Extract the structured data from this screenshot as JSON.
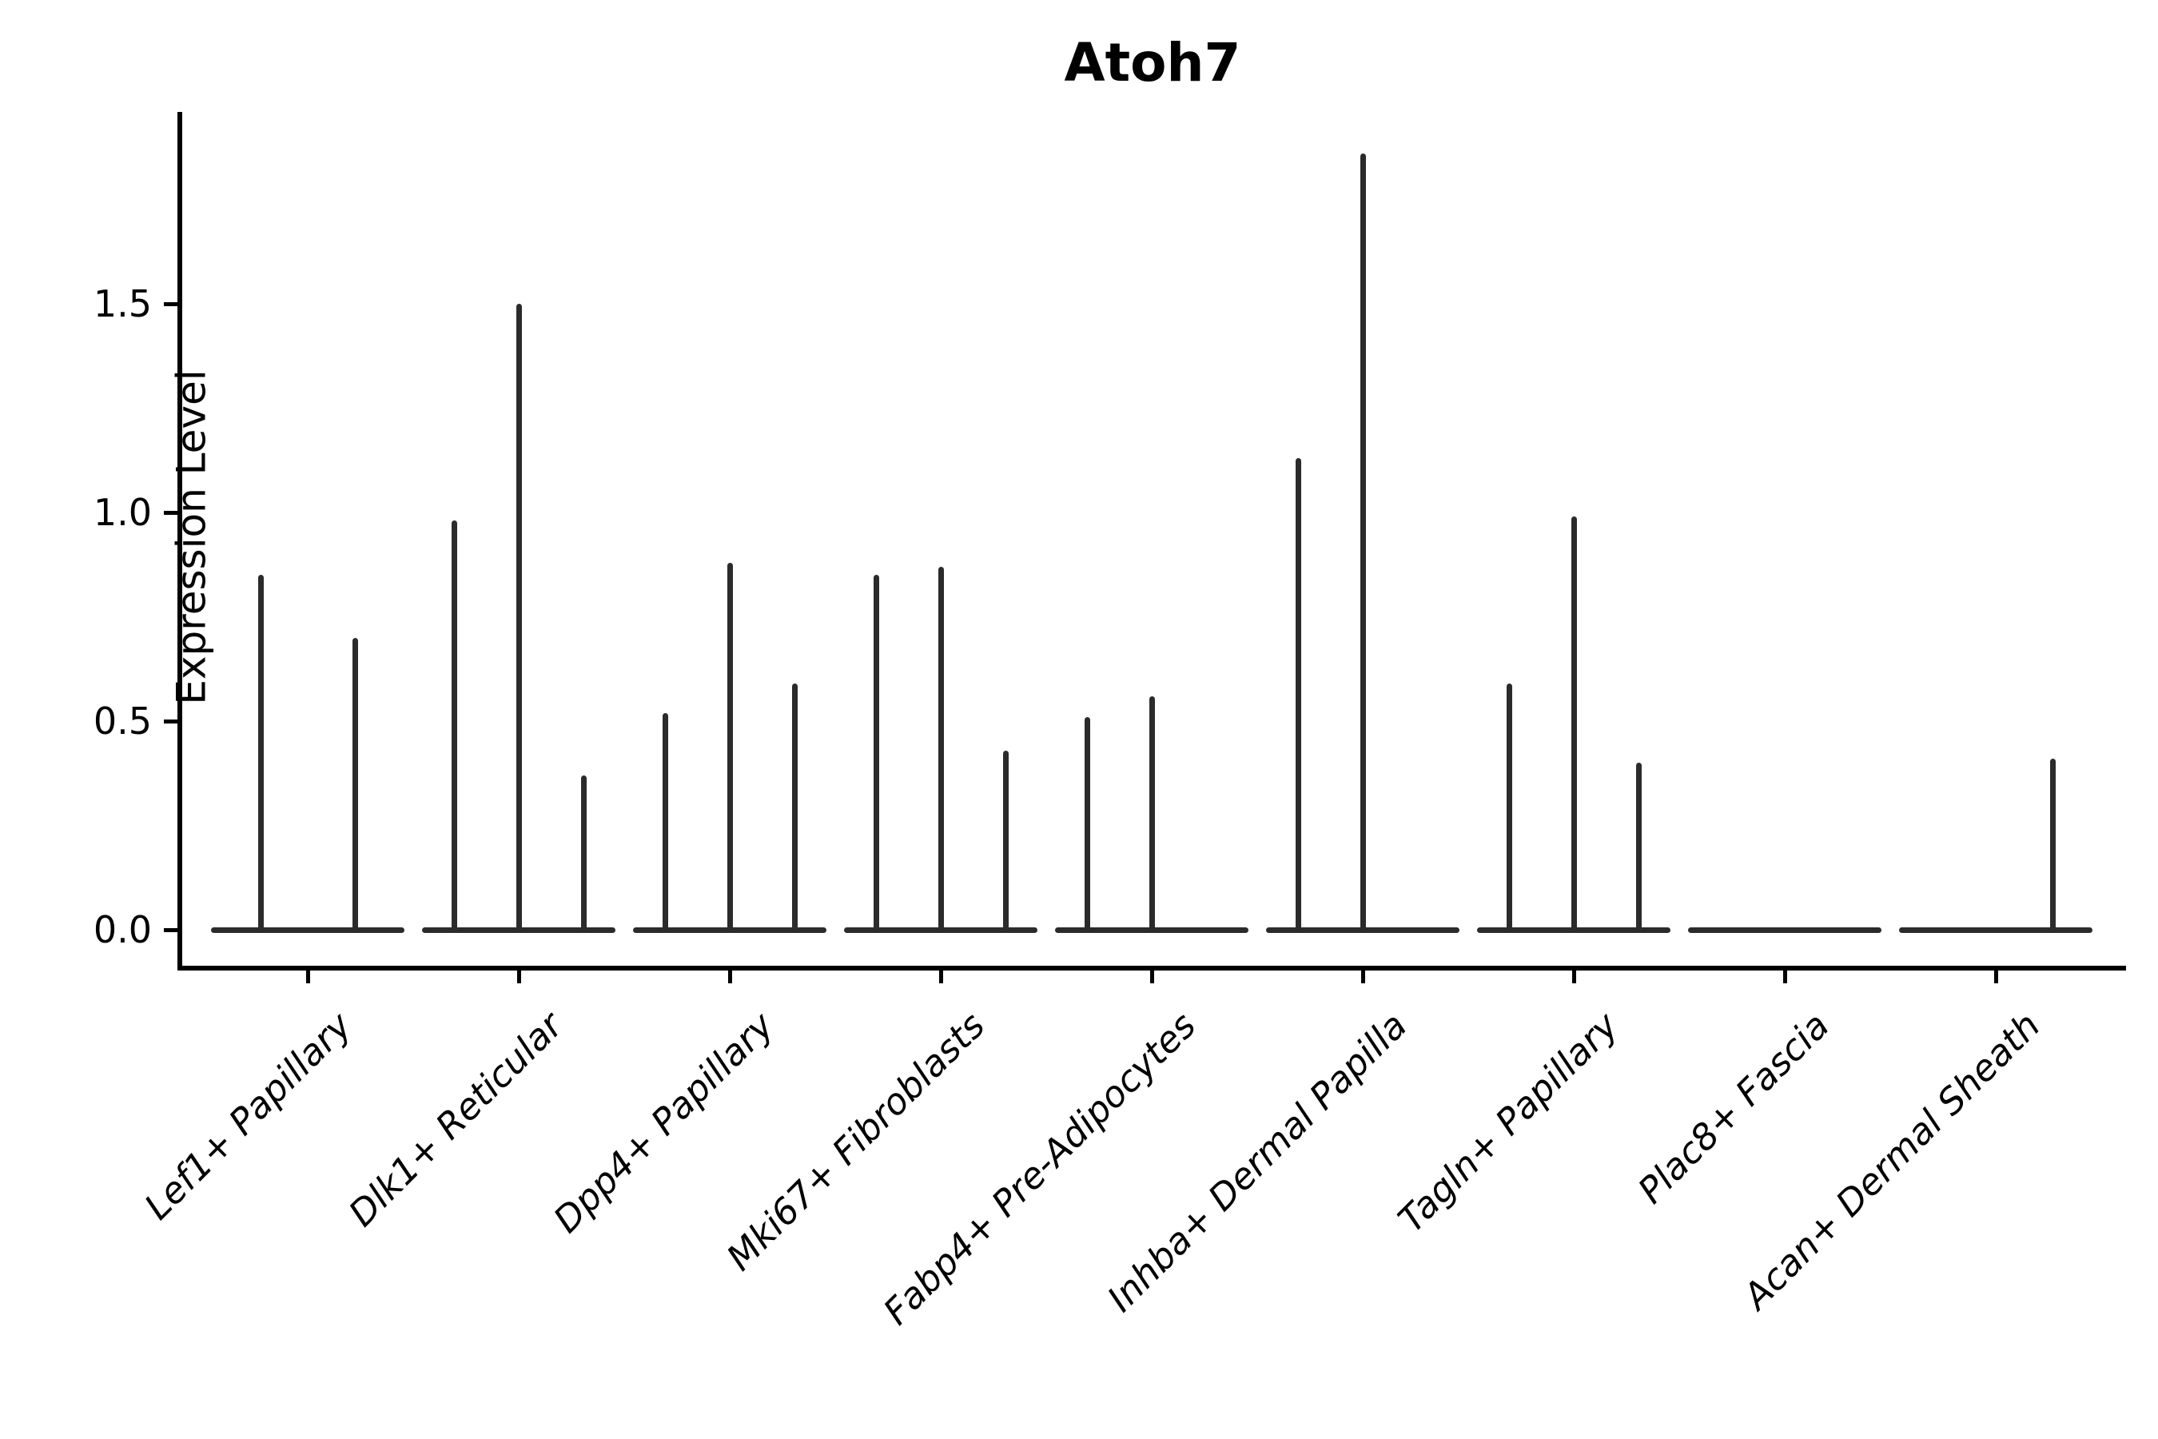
{
  "chart_data": {
    "type": "violin",
    "title": "Atoh7",
    "xlabel": "",
    "ylabel": "Expression Level",
    "grid": false,
    "legend": false,
    "ylim": [
      0,
      1.95
    ],
    "yticks": [
      {
        "label": "0.0",
        "value": 0.0
      },
      {
        "label": "0.5",
        "value": 0.5
      },
      {
        "label": "1.0",
        "value": 1.0
      },
      {
        "label": "1.5",
        "value": 1.5
      }
    ],
    "categories": [
      "Lef1+ Papillary",
      "Dlk1+ Reticular",
      "Dpp4+ Papillary",
      "Mki67+ Fibroblasts",
      "Fabp4+ Pre-Adipocytes",
      "Inhba+ Dermal Papilla",
      "Tagln+ Papillary",
      "Plac8+ Fascia",
      "Acan+ Dermal Sheath"
    ],
    "violins": [
      {
        "category": "Lef1+ Papillary",
        "needles": [
          {
            "dx": -59,
            "value": 0.85
          },
          {
            "dx": 59,
            "value": 0.7
          }
        ]
      },
      {
        "category": "Dlk1+ Reticular",
        "needles": [
          {
            "dx": -81,
            "value": 0.98
          },
          {
            "dx": 0,
            "value": 1.5
          },
          {
            "dx": 81,
            "value": 0.37
          }
        ]
      },
      {
        "category": "Dpp4+ Papillary",
        "needles": [
          {
            "dx": -81,
            "value": 0.52
          },
          {
            "dx": 0,
            "value": 0.88
          },
          {
            "dx": 81,
            "value": 0.59
          }
        ]
      },
      {
        "category": "Mki67+ Fibroblasts",
        "needles": [
          {
            "dx": -81,
            "value": 0.85
          },
          {
            "dx": 0,
            "value": 0.87
          },
          {
            "dx": 81,
            "value": 0.43
          }
        ]
      },
      {
        "category": "Fabp4+ Pre-Adipocytes",
        "needles": [
          {
            "dx": -81,
            "value": 0.51
          },
          {
            "dx": 0,
            "value": 0.56
          }
        ]
      },
      {
        "category": "Inhba+ Dermal Papilla",
        "needles": [
          {
            "dx": -81,
            "value": 1.13
          },
          {
            "dx": 0,
            "value": 1.86
          }
        ]
      },
      {
        "category": "Tagln+ Papillary",
        "needles": [
          {
            "dx": -81,
            "value": 0.59
          },
          {
            "dx": 0,
            "value": 0.99
          },
          {
            "dx": 81,
            "value": 0.4
          }
        ]
      },
      {
        "category": "Plac8+ Fascia",
        "needles": []
      },
      {
        "category": "Acan+ Dermal Sheath",
        "needles": [
          {
            "dx": 71,
            "value": 0.41
          }
        ]
      }
    ],
    "colors": {
      "violin_line": "#2b2b2b",
      "axis": "#000000",
      "background": "#ffffff"
    }
  }
}
